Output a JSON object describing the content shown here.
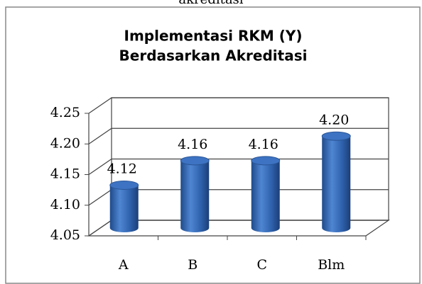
{
  "caption_fragment": "akreditasi",
  "chart_data": {
    "type": "bar3d",
    "title": [
      "Implementasi RKM (Y)",
      "Berdasarkan Akreditasi"
    ],
    "categories": [
      "A",
      "B",
      "C",
      "Blm"
    ],
    "values": [
      4.12,
      4.16,
      4.16,
      4.2
    ],
    "value_labels": [
      "4.12",
      "4.16",
      "4.16",
      "4.20"
    ],
    "color": "#2f62ad",
    "ylim": [
      4.05,
      4.25
    ],
    "yticks": [
      4.05,
      {
        "value": 4.1,
        "label": "4.10"
      },
      4.15,
      {
        "value": 4.2,
        "label": "4.20"
      },
      4.25
    ],
    "grid": true
  }
}
